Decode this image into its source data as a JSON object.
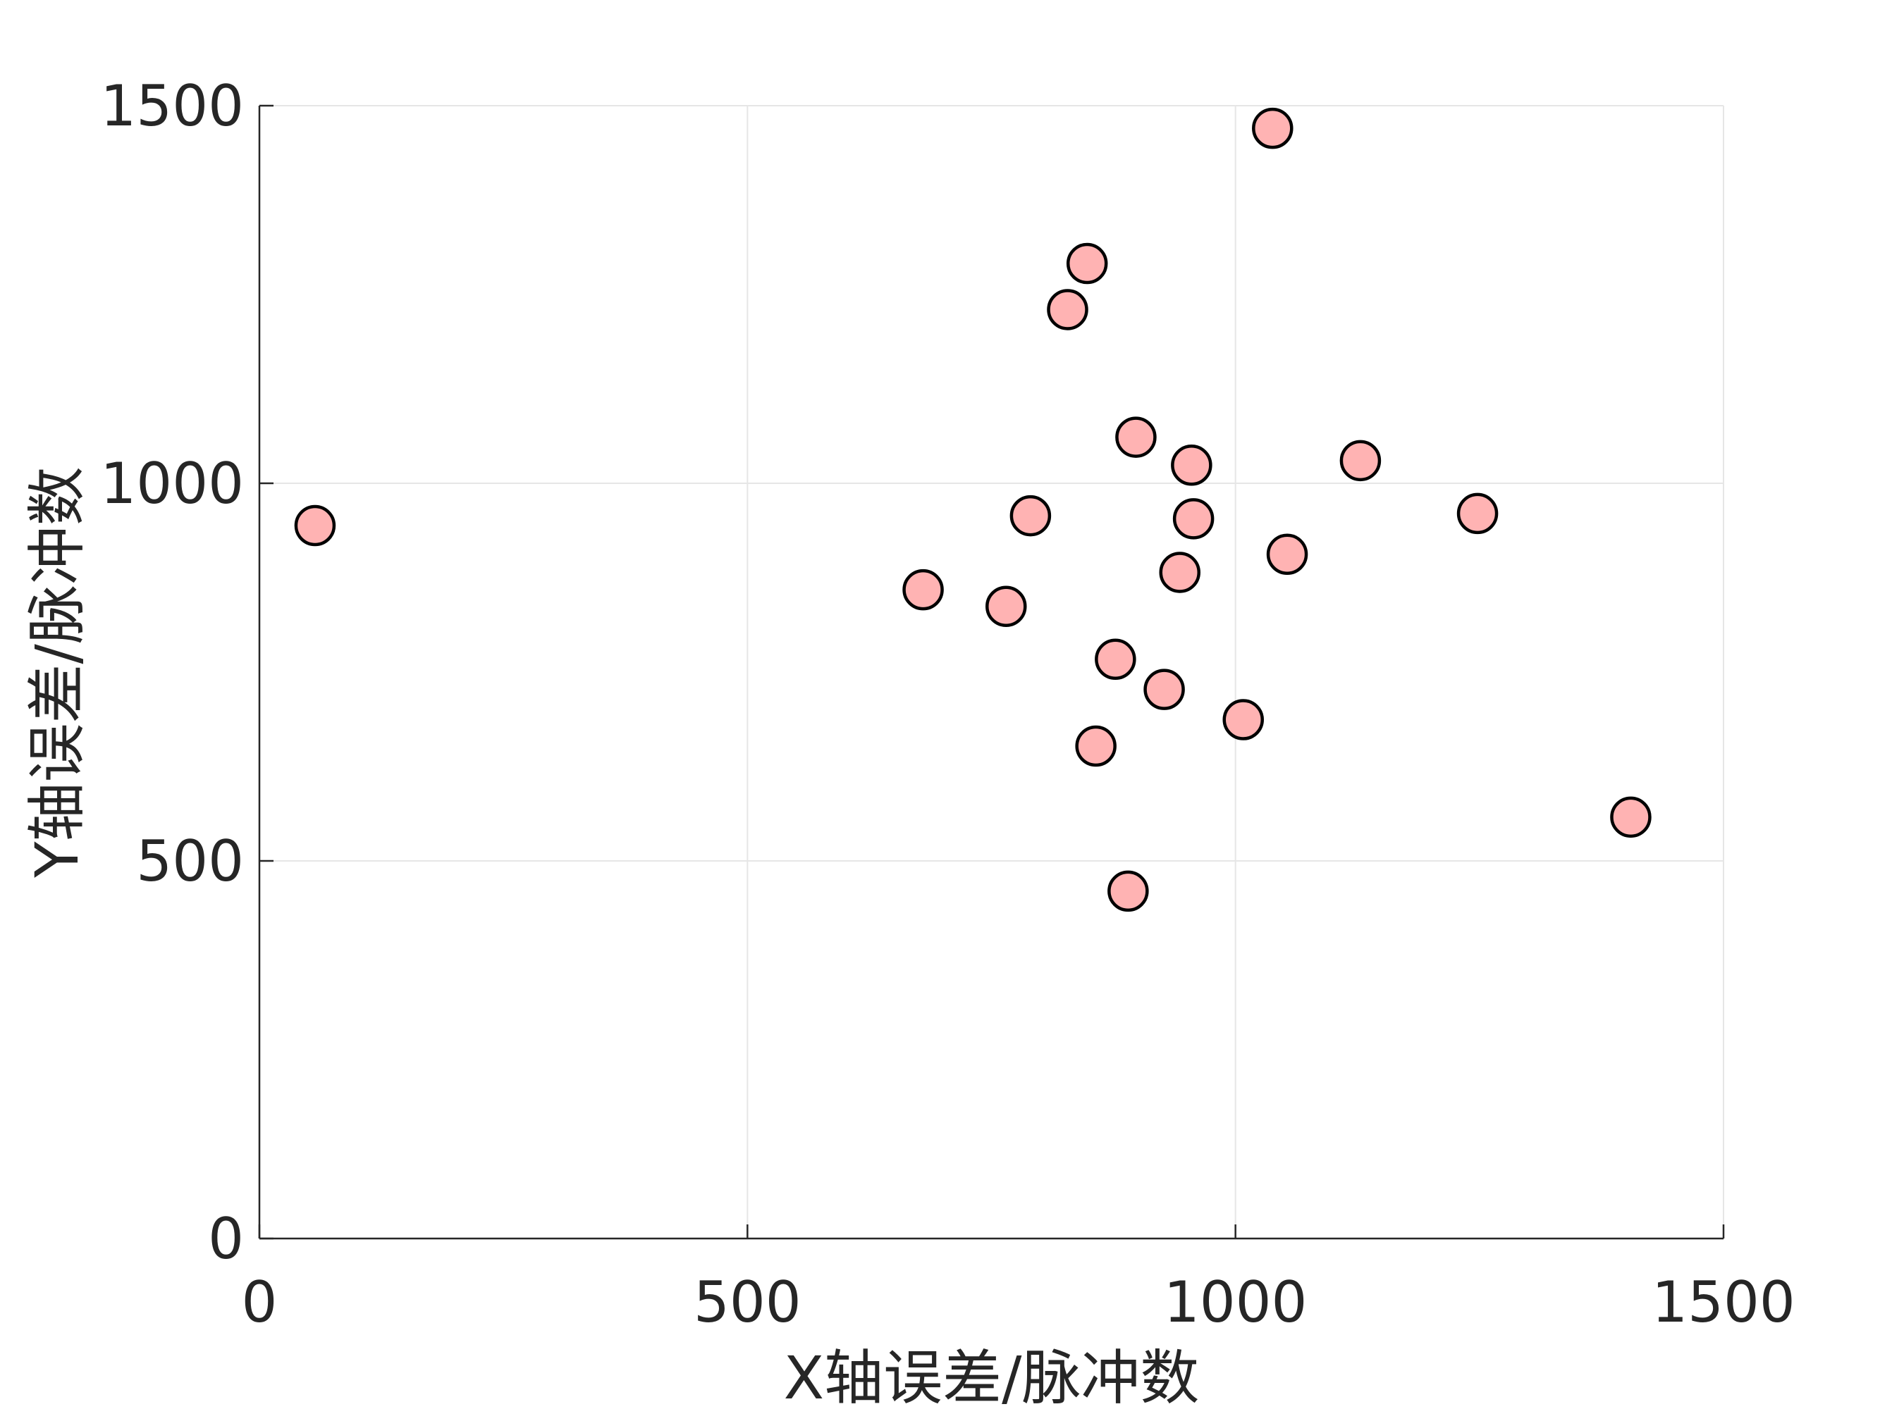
{
  "chart_data": {
    "type": "scatter",
    "title": "",
    "xlabel": "X轴误差/脉冲数",
    "ylabel": "Y轴误差/脉冲数",
    "xlim": [
      0,
      1500
    ],
    "ylim": [
      0,
      1500
    ],
    "x_ticks": [
      "0",
      "500",
      "1000",
      "1500"
    ],
    "y_ticks": [
      "0",
      "500",
      "1000",
      "1500"
    ],
    "grid": true,
    "box": "top and right axis lines hidden, grid lines shown",
    "marker_fill": "#ffb3b3",
    "marker_edge": "#000000",
    "series": [
      {
        "points": [
          {
            "x": 57,
            "y": 944
          },
          {
            "x": 680,
            "y": 859
          },
          {
            "x": 765,
            "y": 837
          },
          {
            "x": 790,
            "y": 957
          },
          {
            "x": 828,
            "y": 1230
          },
          {
            "x": 848,
            "y": 1291
          },
          {
            "x": 857,
            "y": 652
          },
          {
            "x": 877,
            "y": 767
          },
          {
            "x": 890,
            "y": 460
          },
          {
            "x": 898,
            "y": 1061
          },
          {
            "x": 927,
            "y": 727
          },
          {
            "x": 943,
            "y": 882
          },
          {
            "x": 955,
            "y": 1024
          },
          {
            "x": 957,
            "y": 953
          },
          {
            "x": 1008,
            "y": 687
          },
          {
            "x": 1038,
            "y": 1470
          },
          {
            "x": 1053,
            "y": 906
          },
          {
            "x": 1128,
            "y": 1030
          },
          {
            "x": 1248,
            "y": 960
          },
          {
            "x": 1405,
            "y": 558
          }
        ]
      }
    ]
  }
}
